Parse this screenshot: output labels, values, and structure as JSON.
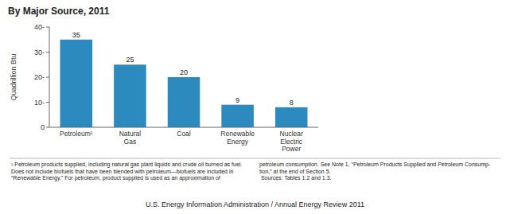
{
  "chart_data": {
    "type": "bar",
    "title": "By Major Source, 2011",
    "categories": [
      "Petroleum¹",
      "Natural\nGas",
      "Coal",
      "Renewable\nEnergy",
      "Nuclear\nElectric\nPower"
    ],
    "values": [
      35,
      25,
      20,
      9,
      8
    ],
    "color": "#2d8abf",
    "ylabel": "Quadrillion Btu",
    "ylim": [
      0,
      40
    ],
    "yticks": [
      0,
      {
        "value": 10,
        "label": "10-"
      },
      {
        "value": 20,
        "label": "20-"
      },
      {
        "value": 30,
        "label": "30-"
      },
      {
        "value": 40,
        "label": "40-"
      }
    ],
    "data_labels": true,
    "grid": false,
    "annotations": [
      "¹ Petroleum products supplied, including natural gas plant liquids and crude oil burned as fuel.\nDoes not include biofuels that have been blended with petroleum—biofuels are included in\n“Renewable Energy.”  For petroleum, product supplied is used as an approximation of",
      "petroleum consumption.  See Note 1, “Petroleum Products Supplied and Petroleum Consump-\ntion,” at the end of Section 5.\n    Sources:  Tables 1.2 and 1.3.",
      "U.S. Energy Information Administration / Annual Energy Review 2011"
    ]
  }
}
